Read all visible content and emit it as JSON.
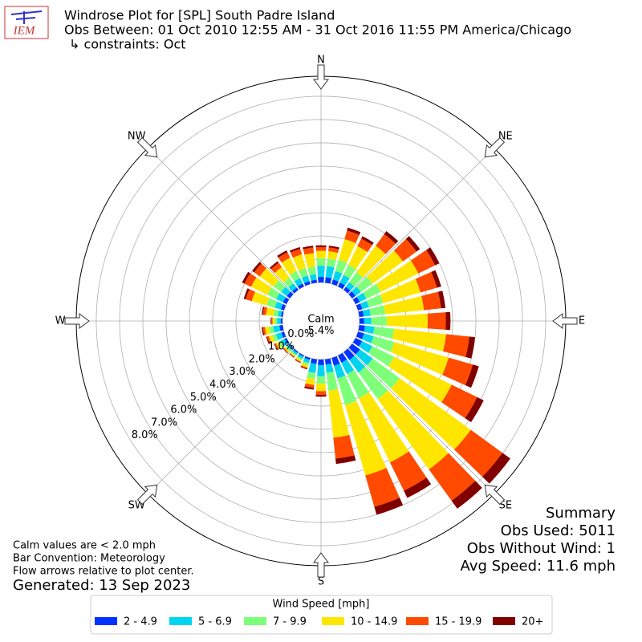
{
  "chart_data": {
    "type": "windrose",
    "title": "Windrose Plot for [SPL] South Padre Island",
    "subtitle": "Obs Between: 01 Oct 2010 12:55 AM - 31 Oct 2016 11:55 PM America/Chicago",
    "constraints": "↳ constraints: Oct",
    "logo_text": "IEM",
    "compass": [
      "N",
      "NE",
      "E",
      "SE",
      "S",
      "SW",
      "W",
      "NW"
    ],
    "x": [
      0,
      10,
      20,
      30,
      40,
      50,
      60,
      70,
      80,
      90,
      100,
      110,
      120,
      130,
      140,
      150,
      160,
      170,
      180,
      190,
      200,
      210,
      220,
      230,
      240,
      250,
      260,
      270,
      280,
      290,
      300,
      310,
      320,
      330,
      340,
      350
    ],
    "series": [
      {
        "name": "2 - 4.9",
        "color": "#0033ff",
        "values": [
          0.24,
          0.24,
          0.2,
          0.19,
          0.16,
          0.18,
          0.2,
          0.19,
          0.19,
          0.2,
          0.25,
          0.27,
          0.31,
          0.42,
          0.42,
          0.34,
          0.35,
          0.23,
          0.24,
          0.2,
          0.08,
          0.05,
          0.05,
          0.05,
          0.09,
          0.12,
          0.14,
          0.08,
          0.07,
          0.14,
          0.17,
          0.16,
          0.12,
          0.14,
          0.13,
          0.13
        ]
      },
      {
        "name": "5 - 6.9",
        "color": "#00d5f0",
        "values": [
          0.48,
          0.48,
          0.38,
          0.36,
          0.25,
          0.29,
          0.32,
          0.3,
          0.3,
          0.31,
          0.4,
          0.43,
          0.49,
          0.67,
          0.66,
          0.54,
          0.56,
          0.36,
          0.48,
          0.39,
          0.15,
          0.11,
          0.09,
          0.11,
          0.18,
          0.24,
          0.27,
          0.15,
          0.14,
          0.27,
          0.32,
          0.3,
          0.23,
          0.26,
          0.25,
          0.24
        ]
      },
      {
        "name": "7 - 9.9",
        "color": "#7dff7a",
        "values": [
          0.32,
          0.32,
          0.5,
          0.48,
          0.53,
          0.61,
          0.68,
          0.63,
          0.63,
          0.66,
          0.85,
          0.92,
          1.04,
          1.43,
          1.41,
          1.16,
          1.19,
          0.77,
          0.32,
          0.26,
          0.1,
          0.07,
          0.06,
          0.07,
          0.12,
          0.16,
          0.18,
          0.1,
          0.18,
          0.36,
          0.42,
          0.4,
          0.3,
          0.34,
          0.33,
          0.32
        ]
      },
      {
        "name": "10 - 14.9",
        "color": "#ffe600",
        "values": [
          0.32,
          0.32,
          0.93,
          0.89,
          1.4,
          1.62,
          1.8,
          1.67,
          1.67,
          1.76,
          2.25,
          2.43,
          2.75,
          3.78,
          3.74,
          3.06,
          3.15,
          2.03,
          0.32,
          0.26,
          0.1,
          0.07,
          0.06,
          0.07,
          0.12,
          0.16,
          0.18,
          0.1,
          0.33,
          0.67,
          0.78,
          0.74,
          0.56,
          0.63,
          0.61,
          0.59
        ]
      },
      {
        "name": "15 - 19.9",
        "color": "#ff4a00",
        "values": [
          0.16,
          0.16,
          0.38,
          0.36,
          0.62,
          0.72,
          0.8,
          0.74,
          0.74,
          0.78,
          1.0,
          1.08,
          1.22,
          1.68,
          1.66,
          1.36,
          1.4,
          0.9,
          0.16,
          0.13,
          0.05,
          0.04,
          0.03,
          0.04,
          0.06,
          0.08,
          0.09,
          0.05,
          0.14,
          0.27,
          0.32,
          0.3,
          0.23,
          0.26,
          0.25,
          0.24
        ]
      },
      {
        "name": "20+",
        "color": "#800000",
        "values": [
          0.08,
          0.08,
          0.13,
          0.12,
          0.16,
          0.18,
          0.2,
          0.19,
          0.19,
          0.2,
          0.25,
          0.27,
          0.31,
          0.42,
          0.42,
          0.34,
          0.35,
          0.23,
          0.08,
          0.07,
          0.03,
          0.02,
          0.02,
          0.02,
          0.03,
          0.04,
          0.05,
          0.03,
          0.05,
          0.09,
          0.11,
          0.1,
          0.08,
          0.09,
          0.08,
          0.08
        ]
      }
    ],
    "rlim": [
      0,
      8.86
    ],
    "rticks": [
      {
        "value": 0,
        "label": "0.0%"
      },
      {
        "value": 1,
        "label": "1.0%"
      },
      {
        "value": 2,
        "label": "2.0%"
      },
      {
        "value": 3,
        "label": "3.0%"
      },
      {
        "value": 4,
        "label": "4.0%"
      },
      {
        "value": 5,
        "label": "5.0%"
      },
      {
        "value": 6,
        "label": "6.0%"
      },
      {
        "value": 7,
        "label": "7.0%"
      },
      {
        "value": 8,
        "label": "8.0%"
      }
    ],
    "grid": true,
    "calm": {
      "label": "Calm",
      "value": 5.4,
      "value_label": "5.4%"
    },
    "summary": [
      "Summary",
      "Obs Used: 5011",
      "Obs Without Wind: 1",
      "Avg Speed: 11.6 mph"
    ],
    "notes": [
      "Calm values are < 2.0 mph",
      "Bar Convention: Meteorology",
      "Flow arrows relative to plot center."
    ],
    "generated": "Generated: 13 Sep 2023",
    "legend_title": "Wind Speed [mph]",
    "legend_position": "bottom"
  }
}
